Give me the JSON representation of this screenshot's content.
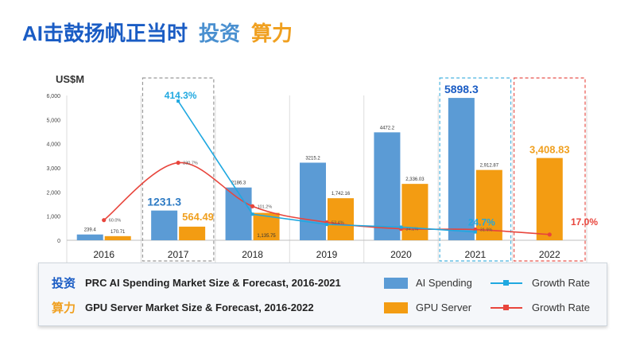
{
  "header": {
    "part1": "AI击鼓扬帆正当时",
    "part2": "投资",
    "part3": "算力"
  },
  "colors": {
    "ai_spending": "#5b9bd5",
    "gpu_server": "#f39c12",
    "growth_ai": "#1fa8e0",
    "growth_gpu": "#e8453c"
  },
  "chart_data": {
    "type": "bar",
    "unit_label": "US$M",
    "categories": [
      "2016",
      "2017",
      "2018",
      "2019",
      "2020",
      "2021",
      "2022"
    ],
    "ylim": [
      0,
      6000
    ],
    "yticks": [
      0,
      1000,
      2000,
      3000,
      4000,
      5000,
      6000
    ],
    "ytick_labels": [
      "0",
      "1,000",
      "2,000",
      "3,000",
      "4,000",
      "5,000",
      "6,000"
    ],
    "series": [
      {
        "name": "AI Spending",
        "values": [
          239.4,
          1231.3,
          2186.3,
          3215.2,
          4472.2,
          5898.3,
          null
        ],
        "labels": [
          "239.4",
          "1231.3",
          "2186.3",
          "3215.2",
          "4472.2",
          "5898.3",
          ""
        ]
      },
      {
        "name": "GPU Server",
        "values": [
          170.71,
          564.49,
          1135.75,
          1742.16,
          2336.03,
          2912.87,
          3408.83
        ],
        "labels": [
          "170.71",
          "564.49",
          "1,135.75",
          "1,742.16",
          "2,336.03",
          "2,912.87",
          "3,408.83"
        ]
      }
    ],
    "growth_ai": {
      "name": "Growth Rate",
      "values": [
        null,
        414.3,
        77.6,
        47.1,
        39.1,
        24.7,
        null
      ],
      "labels": [
        "",
        "414.3%",
        "",
        "",
        "",
        "24.7%",
        ""
      ]
    },
    "growth_gpu": {
      "name": "Growth Rate",
      "values": [
        60.0,
        230.7,
        101.2,
        53.4,
        34.1,
        31.9,
        17.0
      ],
      "labels": [
        "60.0%",
        "230.7%",
        "101.2%",
        "53.4%",
        "34.1%",
        "31.9%",
        "17.0%"
      ]
    },
    "growth_scale_max_pct": 450,
    "highlight_boxes": [
      {
        "category": "2017",
        "style": "dashed-gray"
      },
      {
        "category": "2021",
        "style": "dashed-blue"
      },
      {
        "category": "2022",
        "style": "dashed-red"
      }
    ]
  },
  "legend": {
    "row1_tag": "投资",
    "row1_desc": "PRC AI Spending Market Size & Forecast, 2016-2021",
    "row2_tag": "算力",
    "row2_desc": "GPU Server Market Size & Forecast, 2016-2022",
    "ai_spending": "AI Spending",
    "gpu_server": "GPU Server",
    "growth_ai": "Growth Rate",
    "growth_gpu": "Growth Rate"
  }
}
